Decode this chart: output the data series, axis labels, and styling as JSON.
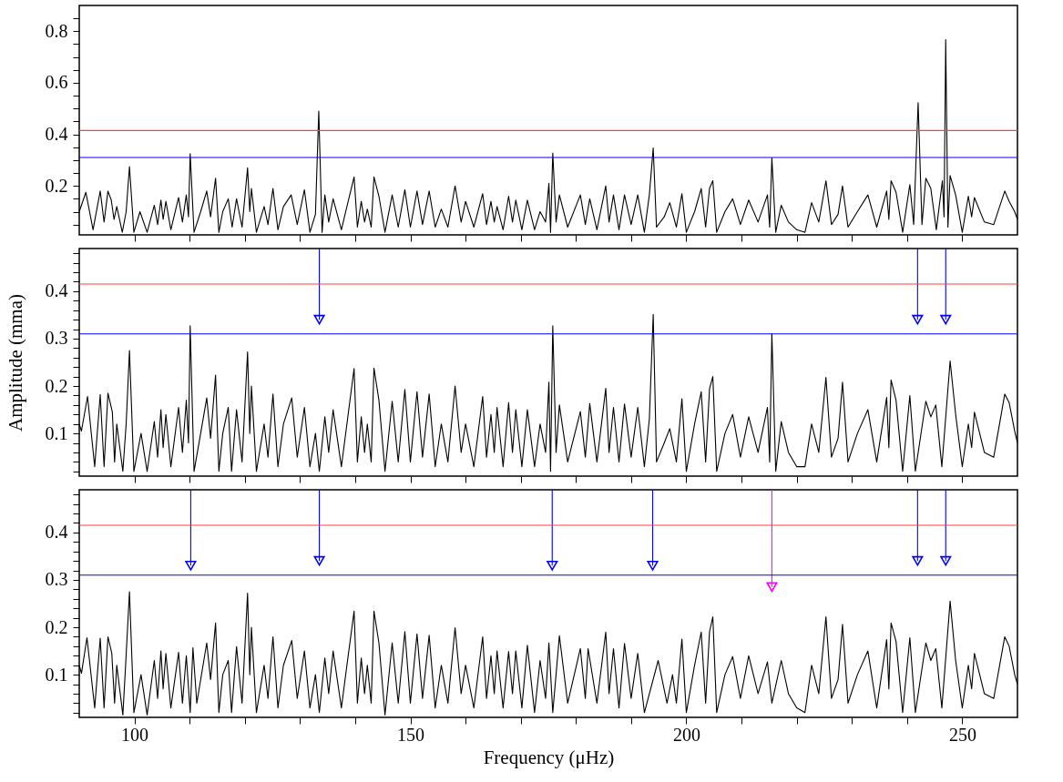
{
  "chart_data": [
    {
      "type": "line",
      "xlim": [
        90,
        260
      ],
      "ylim": [
        0.01,
        0.9
      ],
      "tick_labels": "y",
      "grid": false,
      "xticks": [
        100,
        {
          "value": 110,
          "label": null
        },
        {
          "value": 120,
          "label": null
        },
        {
          "value": 130,
          "label": null
        },
        {
          "value": 140,
          "label": null
        },
        150,
        {
          "value": 160,
          "label": null
        },
        {
          "value": 170,
          "label": null
        },
        {
          "value": 180,
          "label": null
        },
        {
          "value": 190,
          "label": null
        },
        200,
        {
          "value": 210,
          "label": null
        },
        {
          "value": 220,
          "label": null
        },
        {
          "value": 230,
          "label": null
        },
        {
          "value": 240,
          "label": null
        },
        250
      ],
      "yticks": [
        {
          "value": 0.05,
          "label": null
        },
        {
          "value": 0.1,
          "label": null
        },
        {
          "value": 0.15,
          "label": null
        },
        0.2,
        {
          "value": 0.25,
          "label": null
        },
        {
          "value": 0.3,
          "label": null
        },
        {
          "value": 0.35,
          "label": null
        },
        0.4,
        {
          "value": 0.45,
          "label": null
        },
        {
          "value": 0.5,
          "label": null
        },
        {
          "value": 0.55,
          "label": null
        },
        0.6,
        {
          "value": 0.65,
          "label": null
        },
        {
          "value": 0.7,
          "label": null
        },
        {
          "value": 0.75,
          "label": null
        },
        0.8,
        {
          "value": 0.85,
          "label": null
        }
      ],
      "ref_lines": [
        {
          "axis": "y",
          "value": 0.415,
          "color": "#ff4040"
        },
        {
          "axis": "y",
          "value": 0.31,
          "color": "#0000ff"
        }
      ],
      "series": [
        {
          "type": "line",
          "color": "#000000",
          "x": [
            90,
            91.2,
            92.5,
            93.8,
            94.5,
            95.2,
            95.8,
            96.3,
            96.8,
            97.8,
            98.5,
            99.1,
            99.9,
            101,
            102.3,
            103.6,
            104.2,
            104.8,
            105.2,
            105.7,
            106.6,
            108,
            108.7,
            109.4,
            109.8,
            110.1,
            110.8,
            112,
            113.1,
            113.8,
            114.7,
            115.3,
            116,
            117,
            117.7,
            118.5,
            119.5,
            120.5,
            120.9,
            121.2,
            122.1,
            123.5,
            124.2,
            125.1,
            126,
            127,
            128.4,
            129.5,
            130.8,
            131.8,
            132.8,
            133.4,
            134,
            134.5,
            135.2,
            136,
            137.5,
            138.5,
            139.8,
            140.4,
            141.1,
            141.7,
            142.2,
            142.9,
            143.4,
            144.3,
            145.4,
            146.7,
            147.8,
            149,
            150,
            151.2,
            152.2,
            153.4,
            154.5,
            155.6,
            156.8,
            158.1,
            159.2,
            160,
            161.5,
            163.1,
            163.8,
            164.6,
            165.2,
            165.7,
            166.8,
            167.8,
            168.5,
            169.1,
            170.2,
            171.2,
            172.5,
            173.5,
            174.5,
            175.1,
            175.4,
            175.8,
            176.4,
            177,
            178.5,
            180.8,
            181.7,
            182.5,
            183.8,
            185.4,
            186,
            186.8,
            187.8,
            188.8,
            190,
            191.2,
            192.4,
            193.3,
            194,
            194.6,
            196,
            197,
            198.2,
            199.2,
            200,
            201.5,
            202.7,
            203.5,
            204.2,
            204.8,
            205.5,
            207,
            208.4,
            209.8,
            211.3,
            213,
            214.7,
            215.1,
            215.5,
            216.2,
            217.2,
            218.5,
            220,
            221.5,
            222.7,
            224,
            225.3,
            226.3,
            227.5,
            228.3,
            229.3,
            231,
            232.9,
            234.5,
            236.3,
            236.7,
            237.1,
            238,
            239.2,
            240.5,
            241.2,
            242,
            242.7,
            243.4,
            244.3,
            245.3,
            246.4,
            246.7,
            247,
            247.4,
            247.8,
            248.8,
            250,
            251.1,
            251.7,
            252.2,
            254,
            255.7,
            257.7,
            258.5,
            259.5,
            260
          ],
          "values": [
            0.1,
            0.175,
            0.03,
            0.18,
            0.06,
            0.18,
            0.145,
            0.07,
            0.12,
            0.02,
            0.1,
            0.275,
            0.02,
            0.1,
            0.02,
            0.125,
            0.05,
            0.145,
            0.07,
            0.14,
            0.03,
            0.155,
            0.06,
            0.165,
            0.08,
            0.325,
            0.02,
            0.1,
            0.18,
            0.08,
            0.23,
            0.02,
            0.1,
            0.15,
            0.04,
            0.15,
            0.04,
            0.27,
            0.1,
            0.19,
            0.02,
            0.12,
            0.05,
            0.19,
            0.03,
            0.12,
            0.165,
            0.05,
            0.185,
            0.02,
            0.09,
            0.49,
            0.02,
            0.165,
            0.06,
            0.15,
            0.03,
            0.12,
            0.235,
            0.04,
            0.14,
            0.06,
            0.11,
            0.04,
            0.235,
            0.16,
            0.02,
            0.165,
            0.04,
            0.185,
            0.04,
            0.18,
            0.05,
            0.18,
            0.04,
            0.11,
            0.04,
            0.2,
            0.06,
            0.14,
            0.04,
            0.17,
            0.05,
            0.14,
            0.06,
            0.12,
            0.03,
            0.16,
            0.06,
            0.145,
            0.03,
            0.145,
            0.03,
            0.1,
            0.06,
            0.21,
            0.02,
            0.328,
            0.06,
            0.165,
            0.04,
            0.165,
            0.05,
            0.15,
            0.03,
            0.2,
            0.06,
            0.165,
            0.03,
            0.165,
            0.05,
            0.165,
            0.02,
            0.165,
            0.347,
            0.04,
            0.08,
            0.135,
            0.04,
            0.17,
            0.02,
            0.1,
            0.19,
            0.04,
            0.19,
            0.22,
            0.02,
            0.1,
            0.15,
            0.05,
            0.145,
            0.06,
            0.165,
            0.04,
            0.308,
            0.02,
            0.125,
            0.06,
            0.03,
            0.02,
            0.135,
            0.06,
            0.22,
            0.05,
            0.09,
            0.2,
            0.04,
            0.1,
            0.165,
            0.04,
            0.18,
            0.07,
            0.22,
            0.175,
            0.02,
            0.205,
            0.05,
            0.523,
            0.05,
            0.23,
            0.19,
            0.03,
            0.22,
            0.08,
            0.767,
            0.04,
            0.24,
            0.165,
            0.02,
            0.16,
            0.08,
            0.155,
            0.06,
            0.05,
            0.18,
            0.14,
            0.1,
            0.07
          ]
        }
      ]
    },
    {
      "type": "line",
      "xlim": [
        90,
        260
      ],
      "ylim": [
        0.01,
        0.49
      ],
      "tick_labels": "y",
      "ylabel": "Amplitude (mma)",
      "grid": false,
      "xticks": [
        100,
        {
          "value": 110,
          "label": null
        },
        {
          "value": 120,
          "label": null
        },
        {
          "value": 130,
          "label": null
        },
        {
          "value": 140,
          "label": null
        },
        150,
        {
          "value": 160,
          "label": null
        },
        {
          "value": 170,
          "label": null
        },
        {
          "value": 180,
          "label": null
        },
        {
          "value": 190,
          "label": null
        },
        200,
        {
          "value": 210,
          "label": null
        },
        {
          "value": 220,
          "label": null
        },
        {
          "value": 230,
          "label": null
        },
        {
          "value": 240,
          "label": null
        },
        250
      ],
      "yticks": [
        {
          "value": 0.02,
          "label": null
        },
        {
          "value": 0.04,
          "label": null
        },
        {
          "value": 0.06,
          "label": null
        },
        {
          "value": 0.08,
          "label": null
        },
        0.1,
        {
          "value": 0.12,
          "label": null
        },
        {
          "value": 0.14,
          "label": null
        },
        {
          "value": 0.16,
          "label": null
        },
        {
          "value": 0.18,
          "label": null
        },
        0.2,
        {
          "value": 0.22,
          "label": null
        },
        {
          "value": 0.24,
          "label": null
        },
        {
          "value": 0.26,
          "label": null
        },
        {
          "value": 0.28,
          "label": null
        },
        0.3,
        {
          "value": 0.32,
          "label": null
        },
        {
          "value": 0.34,
          "label": null
        },
        {
          "value": 0.36,
          "label": null
        },
        {
          "value": 0.38,
          "label": null
        },
        0.4,
        {
          "value": 0.42,
          "label": null
        },
        {
          "value": 0.44,
          "label": null
        },
        {
          "value": 0.46,
          "label": null
        },
        {
          "value": 0.48,
          "label": null
        }
      ],
      "ref_lines": [
        {
          "axis": "y",
          "value": 0.415,
          "color": "#ff4040"
        },
        {
          "axis": "y",
          "value": 0.31,
          "color": "#0000ff"
        }
      ],
      "series": [
        {
          "type": "line",
          "color": "#000000",
          "x": [
            90,
            90.4,
            91.5,
            92.8,
            93.8,
            94.5,
            95.2,
            96,
            96.4,
            96.8,
            97.9,
            98.5,
            99.1,
            99.9,
            101.2,
            102.3,
            103.6,
            104.2,
            104.8,
            105.2,
            105.7,
            106.6,
            108,
            108.7,
            109.4,
            109.8,
            110.1,
            110.8,
            112,
            113.1,
            113.8,
            114.7,
            115.3,
            116,
            117,
            117.6,
            118.5,
            119.5,
            120.5,
            120.9,
            121.2,
            122.1,
            123.5,
            124.2,
            125.1,
            126,
            127,
            128.5,
            129.5,
            130.8,
            131.8,
            132.8,
            133.5,
            134.5,
            135.2,
            136,
            137.5,
            138.5,
            139.8,
            140.4,
            141.1,
            141.7,
            142.2,
            142.9,
            143.4,
            144.3,
            145.4,
            146.7,
            147.8,
            149,
            150,
            151.2,
            152.2,
            153.4,
            154.5,
            155.6,
            156.8,
            158.1,
            159.2,
            160,
            161.5,
            163.1,
            163.8,
            164.6,
            165.2,
            165.7,
            166.8,
            167.8,
            168.5,
            169.1,
            170.2,
            171.2,
            172.5,
            173.5,
            174.5,
            175.1,
            175.4,
            175.8,
            176.4,
            177,
            178.5,
            180.8,
            181.7,
            182.5,
            183.8,
            185.4,
            186,
            186.8,
            187.8,
            188.8,
            190,
            191.2,
            192.4,
            193.3,
            194,
            194.6,
            196,
            197,
            198.2,
            199.2,
            200,
            201.5,
            202.7,
            203.5,
            204.2,
            204.8,
            205.5,
            207,
            208.4,
            209.8,
            211.3,
            213,
            214.7,
            215.1,
            215.5,
            216.2,
            217.2,
            218.5,
            220,
            221.5,
            222.7,
            224,
            225.3,
            226.3,
            227.5,
            228.3,
            229.3,
            231,
            232.9,
            234.5,
            236.3,
            236.7,
            237.1,
            238,
            239.2,
            240.5,
            241.5,
            243.4,
            244.3,
            245.2,
            246.3,
            247.8,
            248.8,
            250,
            251.1,
            251.7,
            252.2,
            254,
            255.7,
            257.7,
            258.5,
            259.5,
            260
          ],
          "values": [
            0.12,
            0.105,
            0.178,
            0.03,
            0.182,
            0.03,
            0.185,
            0.145,
            0.04,
            0.12,
            0.02,
            0.12,
            0.275,
            0.02,
            0.1,
            0.02,
            0.125,
            0.05,
            0.15,
            0.07,
            0.14,
            0.03,
            0.155,
            0.06,
            0.17,
            0.08,
            0.327,
            0.02,
            0.1,
            0.175,
            0.09,
            0.223,
            0.02,
            0.1,
            0.155,
            0.02,
            0.15,
            0.04,
            0.272,
            0.1,
            0.2,
            0.02,
            0.12,
            0.05,
            0.183,
            0.03,
            0.12,
            0.175,
            0.05,
            0.155,
            0.03,
            0.1,
            0.02,
            0.135,
            0.06,
            0.15,
            0.03,
            0.12,
            0.237,
            0.04,
            0.135,
            0.06,
            0.12,
            0.04,
            0.238,
            0.17,
            0.02,
            0.168,
            0.04,
            0.193,
            0.04,
            0.188,
            0.05,
            0.183,
            0.03,
            0.12,
            0.04,
            0.2,
            0.06,
            0.12,
            0.03,
            0.178,
            0.05,
            0.14,
            0.06,
            0.155,
            0.03,
            0.165,
            0.06,
            0.15,
            0.03,
            0.15,
            0.03,
            0.12,
            0.06,
            0.208,
            0.02,
            0.327,
            0.06,
            0.16,
            0.04,
            0.146,
            0.05,
            0.163,
            0.04,
            0.195,
            0.06,
            0.155,
            0.04,
            0.162,
            0.05,
            0.155,
            0.03,
            0.13,
            0.351,
            0.04,
            0.08,
            0.11,
            0.04,
            0.173,
            0.02,
            0.12,
            0.188,
            0.04,
            0.194,
            0.22,
            0.02,
            0.1,
            0.14,
            0.05,
            0.135,
            0.06,
            0.155,
            0.04,
            0.31,
            0.02,
            0.125,
            0.06,
            0.03,
            0.03,
            0.12,
            0.06,
            0.218,
            0.05,
            0.09,
            0.208,
            0.04,
            0.1,
            0.15,
            0.04,
            0.176,
            0.07,
            0.213,
            0.17,
            0.02,
            0.18,
            0.02,
            0.168,
            0.135,
            0.16,
            0.03,
            0.253,
            0.14,
            0.03,
            0.12,
            0.07,
            0.145,
            0.06,
            0.05,
            0.183,
            0.165,
            0.105,
            0.08
          ]
        },
        {
          "type": "scatter",
          "marker": "triangle",
          "color": "#0000ff",
          "x": [
            133.5,
            241.9,
            247.0
          ],
          "values": [
            0.34,
            0.34,
            0.34
          ],
          "errors": [
            [
              0.34,
              0.49
            ],
            [
              0.34,
              0.49
            ],
            [
              0.34,
              0.49
            ]
          ]
        }
      ]
    },
    {
      "type": "line",
      "xlim": [
        90,
        260
      ],
      "ylim": [
        0.01,
        0.49
      ],
      "xlabel": "Frequency (μHz)",
      "grid": false,
      "xticks": [
        100,
        {
          "value": 110,
          "label": null
        },
        {
          "value": 120,
          "label": null
        },
        {
          "value": 130,
          "label": null
        },
        {
          "value": 140,
          "label": null
        },
        150,
        {
          "value": 160,
          "label": null
        },
        {
          "value": 170,
          "label": null
        },
        {
          "value": 180,
          "label": null
        },
        {
          "value": 190,
          "label": null
        },
        200,
        {
          "value": 210,
          "label": null
        },
        {
          "value": 220,
          "label": null
        },
        {
          "value": 230,
          "label": null
        },
        {
          "value": 240,
          "label": null
        },
        250
      ],
      "yticks": [
        {
          "value": 0.02,
          "label": null
        },
        {
          "value": 0.04,
          "label": null
        },
        {
          "value": 0.06,
          "label": null
        },
        {
          "value": 0.08,
          "label": null
        },
        0.1,
        {
          "value": 0.12,
          "label": null
        },
        {
          "value": 0.14,
          "label": null
        },
        {
          "value": 0.16,
          "label": null
        },
        {
          "value": 0.18,
          "label": null
        },
        0.2,
        {
          "value": 0.22,
          "label": null
        },
        {
          "value": 0.24,
          "label": null
        },
        {
          "value": 0.26,
          "label": null
        },
        {
          "value": 0.28,
          "label": null
        },
        0.3,
        {
          "value": 0.32,
          "label": null
        },
        {
          "value": 0.34,
          "label": null
        },
        {
          "value": 0.36,
          "label": null
        },
        {
          "value": 0.38,
          "label": null
        },
        0.4,
        {
          "value": 0.42,
          "label": null
        },
        {
          "value": 0.44,
          "label": null
        },
        {
          "value": 0.46,
          "label": null
        },
        {
          "value": 0.48,
          "label": null
        }
      ],
      "ref_lines": [
        {
          "axis": "y",
          "value": 0.415,
          "color": "#ff4040"
        },
        {
          "axis": "y",
          "value": 0.31,
          "color": "#0000ff"
        }
      ],
      "series": [
        {
          "type": "line",
          "color": "#000000",
          "x": [
            90,
            90.4,
            91.4,
            92.8,
            93.8,
            94.5,
            95.2,
            95.9,
            96.4,
            96.8,
            97.9,
            98.4,
            99.1,
            99.9,
            101.2,
            102.3,
            103.6,
            104.2,
            104.8,
            105.2,
            105.7,
            106.6,
            108,
            108.7,
            109.4,
            110.1,
            110.6,
            111.3,
            113.1,
            113.8,
            114.7,
            115.3,
            116,
            117,
            117.6,
            118.5,
            119.5,
            120.5,
            120.9,
            121.2,
            122.1,
            123.5,
            124.2,
            125.1,
            126,
            127,
            128.5,
            129.5,
            130.8,
            131.8,
            132.8,
            133.5,
            134.5,
            135.2,
            136,
            137.5,
            138.5,
            139.8,
            140.4,
            141.1,
            141.7,
            142.2,
            142.9,
            143.4,
            144.3,
            145.4,
            146.7,
            147.8,
            149,
            150,
            151.2,
            152.2,
            153.4,
            154.5,
            155.6,
            156.8,
            158.1,
            159.2,
            160,
            161.5,
            163.1,
            163.8,
            164.6,
            165.2,
            165.7,
            166.8,
            167.8,
            168.5,
            169.1,
            170.2,
            171.2,
            172.5,
            173.5,
            174.5,
            175.1,
            175.8,
            177,
            178.5,
            180.8,
            181.7,
            182.2,
            183.8,
            185.4,
            186,
            186.8,
            187.8,
            188.8,
            190,
            191.2,
            192.4,
            194.9,
            196.5,
            197.5,
            198.2,
            199.2,
            200,
            201.5,
            202.7,
            203.5,
            204.2,
            204.8,
            205.5,
            207,
            208.4,
            209.8,
            211.3,
            213,
            214.7,
            215.5,
            217.2,
            218.5,
            220,
            221.5,
            222.7,
            224,
            225.3,
            226.3,
            227.5,
            228.3,
            229.3,
            231,
            232.9,
            234.5,
            236.3,
            236.7,
            237.1,
            238,
            239.2,
            240.5,
            241.5,
            243.4,
            244.3,
            245.2,
            246.3,
            247.8,
            248.8,
            250,
            251.1,
            251.7,
            252.2,
            254,
            255.7,
            257.7,
            258.5,
            259.5,
            260
          ],
          "values": [
            0.12,
            0.103,
            0.178,
            0.03,
            0.177,
            0.03,
            0.18,
            0.145,
            0.04,
            0.12,
            0.015,
            0.12,
            0.275,
            0.02,
            0.1,
            0.015,
            0.13,
            0.05,
            0.15,
            0.07,
            0.145,
            0.03,
            0.147,
            0.04,
            0.14,
            0.02,
            0.157,
            0.04,
            0.167,
            0.09,
            0.209,
            0.02,
            0.1,
            0.13,
            0.02,
            0.159,
            0.04,
            0.272,
            0.1,
            0.2,
            0.02,
            0.12,
            0.05,
            0.18,
            0.03,
            0.12,
            0.172,
            0.05,
            0.15,
            0.03,
            0.1,
            0.02,
            0.135,
            0.06,
            0.15,
            0.03,
            0.12,
            0.234,
            0.04,
            0.135,
            0.06,
            0.12,
            0.04,
            0.234,
            0.167,
            0.015,
            0.167,
            0.04,
            0.191,
            0.04,
            0.186,
            0.05,
            0.183,
            0.03,
            0.12,
            0.04,
            0.199,
            0.06,
            0.12,
            0.03,
            0.18,
            0.05,
            0.14,
            0.06,
            0.15,
            0.03,
            0.149,
            0.06,
            0.15,
            0.03,
            0.162,
            0.02,
            0.13,
            0.05,
            0.167,
            0.02,
            0.182,
            0.04,
            0.155,
            0.05,
            0.155,
            0.04,
            0.19,
            0.06,
            0.155,
            0.03,
            0.166,
            0.05,
            0.145,
            0.02,
            0.13,
            0.04,
            0.1,
            0.04,
            0.175,
            0.02,
            0.12,
            0.19,
            0.04,
            0.19,
            0.222,
            0.02,
            0.1,
            0.138,
            0.05,
            0.14,
            0.06,
            0.127,
            0.04,
            0.13,
            0.06,
            0.03,
            0.02,
            0.12,
            0.06,
            0.222,
            0.05,
            0.09,
            0.206,
            0.04,
            0.1,
            0.15,
            0.03,
            0.174,
            0.07,
            0.209,
            0.17,
            0.02,
            0.178,
            0.02,
            0.167,
            0.13,
            0.155,
            0.03,
            0.255,
            0.13,
            0.03,
            0.12,
            0.07,
            0.145,
            0.06,
            0.05,
            0.18,
            0.16,
            0.1,
            0.08
          ]
        },
        {
          "type": "scatter",
          "marker": "triangle",
          "color": "#0000ff",
          "x": [
            110.2,
            133.5,
            175.7,
            193.9,
            241.9,
            247.0
          ],
          "values": [
            0.33,
            0.34,
            0.33,
            0.33,
            0.34,
            0.34
          ],
          "errors": [
            [
              0.33,
              0.49
            ],
            [
              0.34,
              0.49
            ],
            [
              0.33,
              0.49
            ],
            [
              0.33,
              0.49
            ],
            [
              0.34,
              0.49
            ],
            [
              0.34,
              0.49
            ]
          ]
        },
        {
          "type": "scatter",
          "marker": "triangle",
          "color": "#ff00ff",
          "x": [
            215.5
          ],
          "values": [
            0.285
          ],
          "errors": [
            [
              0.285,
              0.49
            ]
          ]
        }
      ]
    }
  ]
}
